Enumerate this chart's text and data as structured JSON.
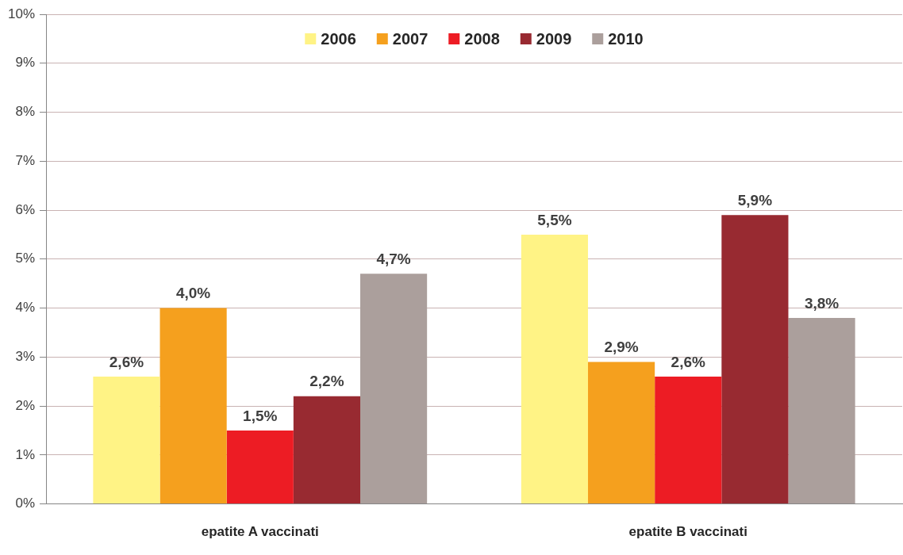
{
  "chart_data": {
    "type": "bar",
    "categories": [
      "epatite A vaccinati",
      "epatite B vaccinati"
    ],
    "series": [
      {
        "name": "2006",
        "color": "#fff385",
        "values": [
          2.6,
          5.5
        ],
        "value_labels": [
          "2,6%",
          "5,5%"
        ]
      },
      {
        "name": "2007",
        "color": "#f5a01e",
        "values": [
          4.0,
          2.9
        ],
        "value_labels": [
          "4,0%",
          "2,9%"
        ]
      },
      {
        "name": "2008",
        "color": "#ed1c24",
        "values": [
          1.5,
          2.6
        ],
        "value_labels": [
          "1,5%",
          "2,6%"
        ]
      },
      {
        "name": "2009",
        "color": "#982a31",
        "values": [
          2.2,
          5.9
        ],
        "value_labels": [
          "2,2%",
          "5,9%"
        ]
      },
      {
        "name": "2010",
        "color": "#ab9f9c",
        "values": [
          4.7,
          3.8
        ],
        "value_labels": [
          "4,7%",
          "3,8%"
        ]
      }
    ],
    "ylim": [
      0,
      10
    ],
    "yticks": [
      {
        "value": 0,
        "label": "0%"
      },
      {
        "value": 1,
        "label": "1%"
      },
      {
        "value": 2,
        "label": "2%"
      },
      {
        "value": 3,
        "label": "3%"
      },
      {
        "value": 4,
        "label": "4%"
      },
      {
        "value": 5,
        "label": "5%"
      },
      {
        "value": 6,
        "label": "6%"
      },
      {
        "value": 7,
        "label": "7%"
      },
      {
        "value": 8,
        "label": "8%"
      },
      {
        "value": 9,
        "label": "9%"
      },
      {
        "value": 10,
        "label": "10%"
      }
    ],
    "grid": "y",
    "legend": "top"
  }
}
